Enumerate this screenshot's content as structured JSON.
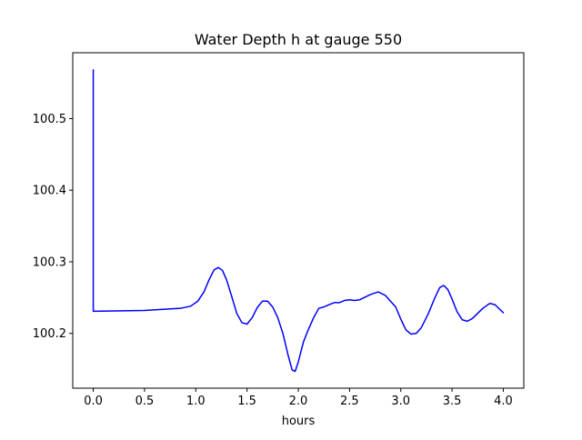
{
  "chart_data": {
    "type": "line",
    "title": "Water Depth h at gauge 550",
    "xlabel": "hours",
    "ylabel": "",
    "xlim": [
      -0.2,
      4.2
    ],
    "ylim": [
      100.1235,
      100.592
    ],
    "x_ticks": [
      0.0,
      0.5,
      1.0,
      1.5,
      2.0,
      2.5,
      3.0,
      3.5,
      4.0
    ],
    "x_tick_labels": [
      "0.0",
      "0.5",
      "1.0",
      "1.5",
      "2.0",
      "2.5",
      "3.0",
      "3.5",
      "4.0"
    ],
    "y_ticks": [
      100.2,
      100.3,
      100.4,
      100.5
    ],
    "y_tick_labels": [
      "100.2",
      "100.3",
      "100.4",
      "100.5"
    ],
    "grid": false,
    "legend": "none",
    "series": [
      {
        "color": "#0000ff",
        "points": [
          [
            0.0,
            100.568
          ],
          [
            0.0,
            100.231
          ],
          [
            0.5,
            100.232
          ],
          [
            0.85,
            100.235
          ],
          [
            0.95,
            100.238
          ],
          [
            1.02,
            100.245
          ],
          [
            1.08,
            100.258
          ],
          [
            1.13,
            100.275
          ],
          [
            1.18,
            100.289
          ],
          [
            1.22,
            100.292
          ],
          [
            1.26,
            100.288
          ],
          [
            1.3,
            100.275
          ],
          [
            1.35,
            100.252
          ],
          [
            1.4,
            100.228
          ],
          [
            1.45,
            100.215
          ],
          [
            1.5,
            100.213
          ],
          [
            1.55,
            100.222
          ],
          [
            1.6,
            100.236
          ],
          [
            1.65,
            100.245
          ],
          [
            1.7,
            100.245
          ],
          [
            1.75,
            100.237
          ],
          [
            1.8,
            100.222
          ],
          [
            1.85,
            100.2
          ],
          [
            1.9,
            100.17
          ],
          [
            1.94,
            100.149
          ],
          [
            1.97,
            100.147
          ],
          [
            2.0,
            100.16
          ],
          [
            2.05,
            100.188
          ],
          [
            2.1,
            100.206
          ],
          [
            2.15,
            100.222
          ],
          [
            2.2,
            100.235
          ],
          [
            2.25,
            100.237
          ],
          [
            2.3,
            100.24
          ],
          [
            2.35,
            100.243
          ],
          [
            2.4,
            100.243
          ],
          [
            2.45,
            100.246
          ],
          [
            2.5,
            100.247
          ],
          [
            2.55,
            100.246
          ],
          [
            2.6,
            100.247
          ],
          [
            2.7,
            100.254
          ],
          [
            2.78,
            100.258
          ],
          [
            2.85,
            100.253
          ],
          [
            2.95,
            100.237
          ],
          [
            3.0,
            100.22
          ],
          [
            3.05,
            100.205
          ],
          [
            3.1,
            100.199
          ],
          [
            3.15,
            100.2
          ],
          [
            3.2,
            100.208
          ],
          [
            3.27,
            100.228
          ],
          [
            3.33,
            100.249
          ],
          [
            3.38,
            100.264
          ],
          [
            3.42,
            100.267
          ],
          [
            3.46,
            100.261
          ],
          [
            3.5,
            100.248
          ],
          [
            3.55,
            100.23
          ],
          [
            3.6,
            100.219
          ],
          [
            3.65,
            100.217
          ],
          [
            3.7,
            100.221
          ],
          [
            3.8,
            100.235
          ],
          [
            3.87,
            100.242
          ],
          [
            3.92,
            100.24
          ],
          [
            3.97,
            100.233
          ],
          [
            4.0,
            100.229
          ]
        ]
      }
    ]
  }
}
